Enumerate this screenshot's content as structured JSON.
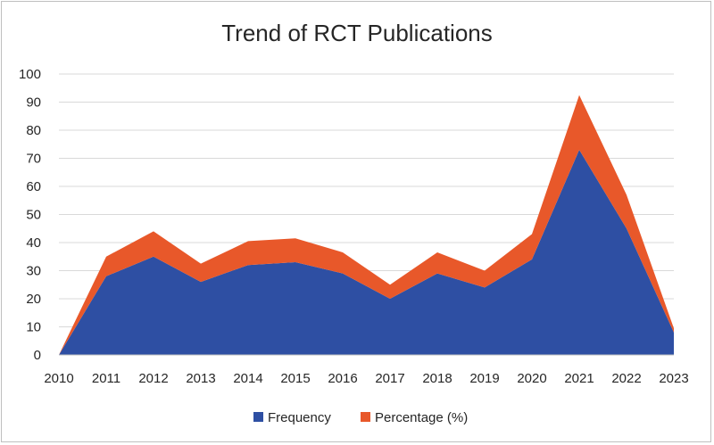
{
  "chart_data": {
    "type": "area",
    "stacked": true,
    "title": "Trend of RCT Publications",
    "xlabel": "",
    "ylabel": "",
    "categories": [
      "2010",
      "2011",
      "2012",
      "2013",
      "2014",
      "2015",
      "2016",
      "2017",
      "2018",
      "2019",
      "2020",
      "2021",
      "2022",
      "2023"
    ],
    "ylim": [
      0,
      100
    ],
    "yticks": [
      0,
      10,
      20,
      30,
      40,
      50,
      60,
      70,
      80,
      90,
      100
    ],
    "grid": true,
    "legend_position": "bottom",
    "series": [
      {
        "name": "Frequency",
        "color": "#2e4fa3",
        "values": [
          0,
          28,
          35,
          26,
          32,
          33,
          29,
          20,
          29,
          24,
          34,
          73,
          45,
          8
        ]
      },
      {
        "name": "Percentage (%)",
        "color": "#e8582a",
        "values": [
          0,
          7,
          9,
          6.5,
          8.5,
          8.5,
          7.5,
          5,
          7.5,
          6,
          9,
          19.5,
          12,
          1.5
        ]
      }
    ]
  }
}
